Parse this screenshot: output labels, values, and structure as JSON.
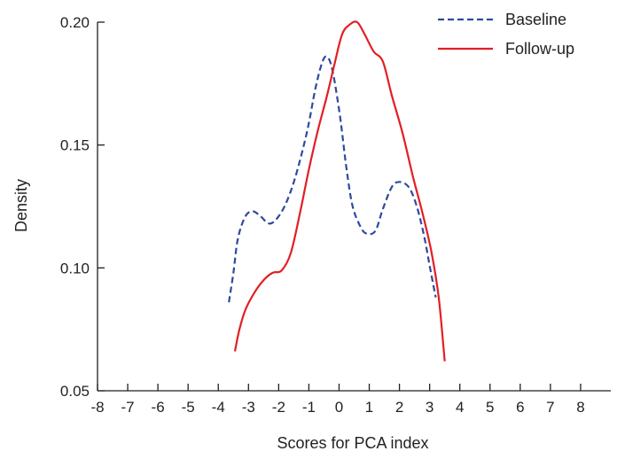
{
  "chart_data": {
    "type": "line",
    "title": "",
    "xlabel": "Scores for PCA index",
    "ylabel": "Density",
    "xlim": [
      -8,
      9
    ],
    "ylim": [
      0.05,
      0.2
    ],
    "x_ticks": [
      -8,
      -7,
      -6,
      -5,
      -4,
      -3,
      -2,
      -1,
      0,
      1,
      2,
      3,
      4,
      5,
      6,
      7,
      8
    ],
    "y_ticks": [
      0.05,
      0.1,
      0.15,
      0.2
    ],
    "y_tick_labels": [
      "0.05",
      "0.10",
      "0.15",
      "0.20"
    ],
    "grid": false,
    "legend_position": "top-right",
    "series": [
      {
        "name": "Baseline",
        "color": "#2e4a9e",
        "style": "dashed",
        "points": [
          [
            -3.65,
            0.086
          ],
          [
            -3.5,
            0.098
          ],
          [
            -3.35,
            0.112
          ],
          [
            -3.1,
            0.121
          ],
          [
            -2.85,
            0.123
          ],
          [
            -2.6,
            0.121
          ],
          [
            -2.3,
            0.118
          ],
          [
            -2.0,
            0.121
          ],
          [
            -1.7,
            0.128
          ],
          [
            -1.4,
            0.139
          ],
          [
            -1.05,
            0.156
          ],
          [
            -0.8,
            0.172
          ],
          [
            -0.6,
            0.182
          ],
          [
            -0.45,
            0.186
          ],
          [
            -0.3,
            0.184
          ],
          [
            -0.15,
            0.176
          ],
          [
            0.05,
            0.16
          ],
          [
            0.25,
            0.14
          ],
          [
            0.45,
            0.125
          ],
          [
            0.7,
            0.117
          ],
          [
            0.9,
            0.114
          ],
          [
            1.2,
            0.115
          ],
          [
            1.45,
            0.124
          ],
          [
            1.75,
            0.133
          ],
          [
            2.0,
            0.135
          ],
          [
            2.3,
            0.133
          ],
          [
            2.55,
            0.126
          ],
          [
            2.8,
            0.114
          ],
          [
            3.0,
            0.101
          ],
          [
            3.2,
            0.088
          ]
        ]
      },
      {
        "name": "Follow-up",
        "color": "#e31e24",
        "style": "solid",
        "points": [
          [
            -3.45,
            0.066
          ],
          [
            -3.3,
            0.075
          ],
          [
            -3.1,
            0.083
          ],
          [
            -2.8,
            0.09
          ],
          [
            -2.5,
            0.095
          ],
          [
            -2.2,
            0.098
          ],
          [
            -1.9,
            0.099
          ],
          [
            -1.6,
            0.106
          ],
          [
            -1.3,
            0.122
          ],
          [
            -1.0,
            0.14
          ],
          [
            -0.7,
            0.156
          ],
          [
            -0.4,
            0.17
          ],
          [
            -0.15,
            0.183
          ],
          [
            0.1,
            0.195
          ],
          [
            0.35,
            0.199
          ],
          [
            0.6,
            0.2
          ],
          [
            0.85,
            0.195
          ],
          [
            1.15,
            0.188
          ],
          [
            1.45,
            0.184
          ],
          [
            1.75,
            0.17
          ],
          [
            2.1,
            0.155
          ],
          [
            2.45,
            0.137
          ],
          [
            2.75,
            0.123
          ],
          [
            3.05,
            0.107
          ],
          [
            3.3,
            0.088
          ],
          [
            3.5,
            0.062
          ]
        ]
      }
    ]
  }
}
